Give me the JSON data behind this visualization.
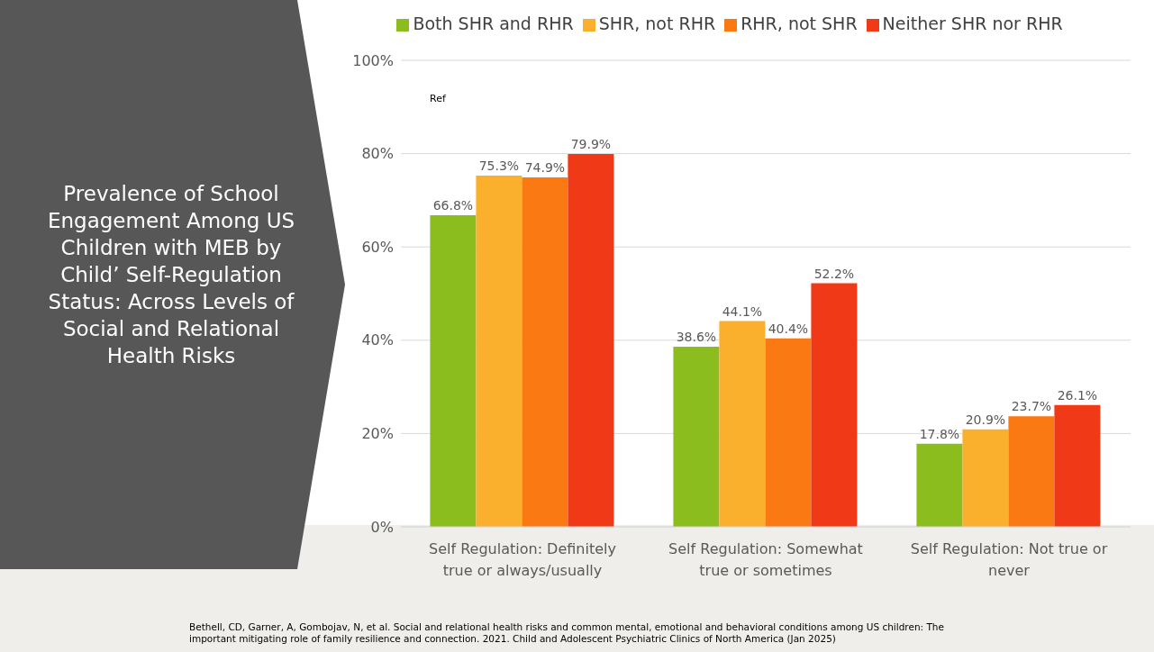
{
  "chart_data": {
    "type": "bar",
    "title": "Prevalence of School Engagement Among US Children with MEB by Child’ Self-Regulation Status: Across Levels of Social and Relational Health Risks",
    "categories": [
      "Self Regulation: Definitely true or always/usually",
      "Self Regulation: Somewhat true or sometimes",
      "Self Regulation: Not true or never"
    ],
    "series": [
      {
        "name": "Both SHR and RHR",
        "color": "#8cbd1f",
        "values": [
          66.8,
          38.6,
          17.8
        ],
        "value_labels": [
          "66.8%",
          "38.6%",
          "17.8%"
        ]
      },
      {
        "name": "SHR, not RHR",
        "color": "#fbb02d",
        "values": [
          75.3,
          44.1,
          20.9
        ],
        "value_labels": [
          "75.3%",
          "44.1%",
          "20.9%"
        ]
      },
      {
        "name": "RHR, not SHR",
        "color": "#fb7912",
        "values": [
          74.9,
          40.4,
          23.7
        ],
        "value_labels": [
          "74.9%",
          "40.4%",
          "23.7%"
        ]
      },
      {
        "name": "Neither SHR nor RHR",
        "color": "#f03a17",
        "values": [
          79.9,
          52.2,
          26.1
        ],
        "value_labels": [
          "79.9%",
          "52.2%",
          "26.1%"
        ]
      }
    ],
    "ylim": [
      0,
      100
    ],
    "yticks": [
      {
        "value": 0,
        "label": "0%"
      },
      {
        "value": 20,
        "label": "20%"
      },
      {
        "value": 40,
        "label": "40%"
      },
      {
        "value": 60,
        "label": "60%"
      },
      {
        "value": 80,
        "label": "80%"
      },
      {
        "value": 100,
        "label": "100%"
      }
    ],
    "grid": "y",
    "legend": "top",
    "annotations": [
      "Ref",
      "Bethell, CD, Garner, A, Gombojav, N, et al.  Social and relational health risks and common mental, emotional and behavioral conditions among US children: The important mitigating role of family resilience and connection. 2021.  Child and Adolescent Psychiatric Clinics of North America (Jan 2025)"
    ]
  }
}
